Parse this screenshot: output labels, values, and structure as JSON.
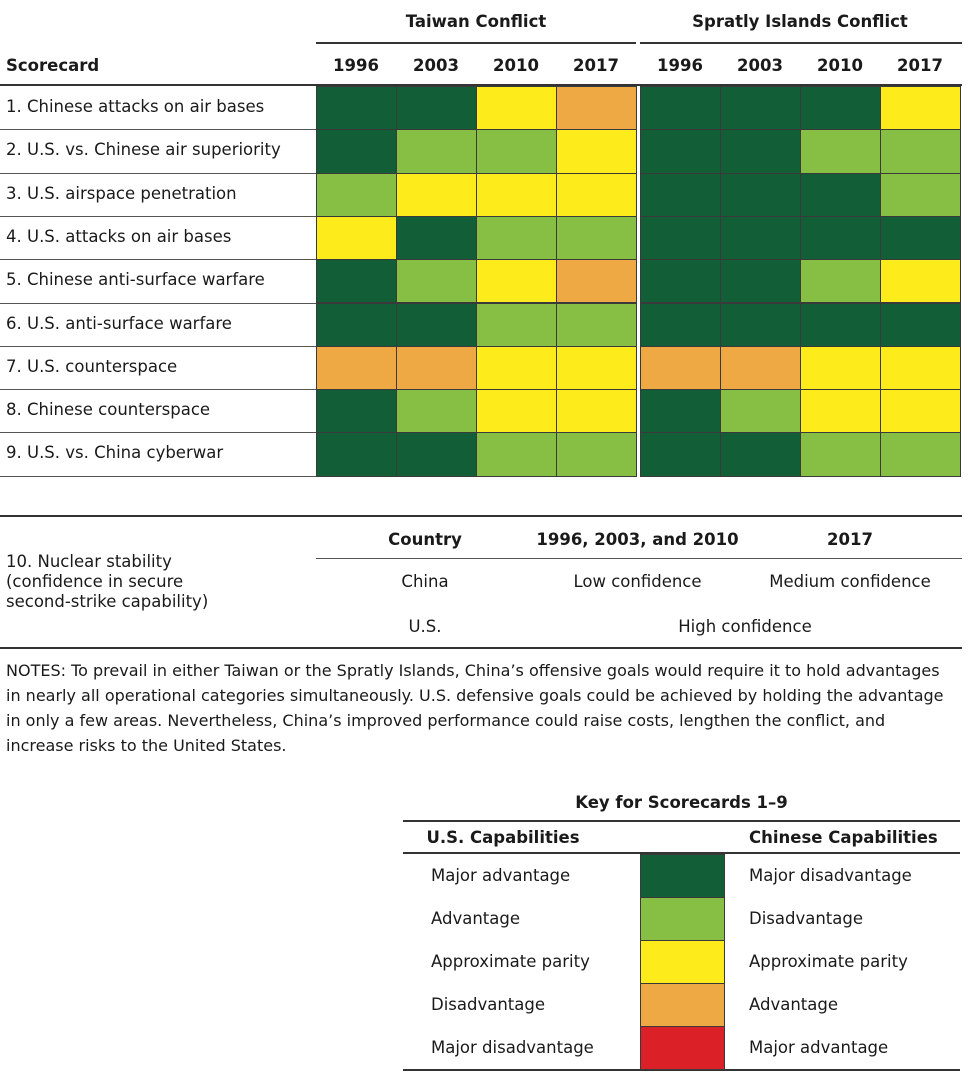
{
  "chart_data": {
    "type": "heatmap",
    "title": "Scorecard",
    "groups": [
      "Taiwan Conflict",
      "Spratly Islands Conflict"
    ],
    "years": [
      "1996",
      "2003",
      "2010",
      "2017"
    ],
    "row_header": "Scorecard",
    "scale_note": "2 = U.S. major advantage, 1 = U.S. advantage, 0 = approximate parity, -1 = U.S. disadvantage, -2 = U.S. major disadvantage",
    "rows": [
      {
        "label": "1. Chinese attacks on air bases",
        "taiwan": [
          2,
          2,
          0,
          -1
        ],
        "spratly": [
          2,
          2,
          2,
          0
        ]
      },
      {
        "label": "2. U.S. vs. Chinese air superiority",
        "taiwan": [
          2,
          1,
          1,
          0
        ],
        "spratly": [
          2,
          2,
          1,
          1
        ]
      },
      {
        "label": "3. U.S. airspace penetration",
        "taiwan": [
          1,
          0,
          0,
          0
        ],
        "spratly": [
          2,
          2,
          2,
          1
        ]
      },
      {
        "label": "4. U.S. attacks on air bases",
        "taiwan": [
          0,
          2,
          1,
          1
        ],
        "spratly": [
          2,
          2,
          2,
          2
        ]
      },
      {
        "label": "5. Chinese anti-surface warfare",
        "taiwan": [
          2,
          1,
          0,
          -1
        ],
        "spratly": [
          2,
          2,
          1,
          0
        ]
      },
      {
        "label": "6. U.S. anti-surface warfare",
        "taiwan": [
          2,
          2,
          1,
          1
        ],
        "spratly": [
          2,
          2,
          2,
          2
        ]
      },
      {
        "label": "7. U.S. counterspace",
        "taiwan": [
          -1,
          -1,
          0,
          0
        ],
        "spratly": [
          -1,
          -1,
          0,
          0
        ]
      },
      {
        "label": "8. Chinese counterspace",
        "taiwan": [
          2,
          1,
          0,
          0
        ],
        "spratly": [
          2,
          1,
          0,
          0
        ]
      },
      {
        "label": "9. U.S. vs. China cyberwar",
        "taiwan": [
          2,
          2,
          1,
          1
        ],
        "spratly": [
          2,
          2,
          1,
          1
        ]
      }
    ],
    "colors": {
      "2": "#115e37",
      "1": "#86bf43",
      "0": "#fdeb1b",
      "-1": "#efa944",
      "-2": "#dc2027"
    }
  },
  "nuclear": {
    "label": "10. Nuclear stability\n(confidence in secure\nsecond-strike capability)",
    "headers": [
      "Country",
      "1996, 2003, and 2010",
      "2017"
    ],
    "china": {
      "country": "China",
      "early": "Low confidence",
      "late": "Medium confidence"
    },
    "us": {
      "country": "U.S.",
      "all": "High confidence"
    }
  },
  "notes": "NOTES: To prevail in either Taiwan or the Spratly Islands, China’s offensive goals would require it to hold advantages in nearly all operational categories simultaneously. U.S. defensive goals could be achieved by holding the advantage in only a few areas. Nevertheless, China’s improved performance could raise costs, lengthen the conflict, and increase risks to the United States.",
  "key": {
    "title": "Key for Scorecards 1–9",
    "us_header": "U.S. Capabilities",
    "cn_header": "Chinese Capabilities",
    "items": [
      {
        "value": 2,
        "us": "Major advantage",
        "cn": "Major disadvantage"
      },
      {
        "value": 1,
        "us": "Advantage",
        "cn": "Disadvantage"
      },
      {
        "value": 0,
        "us": "Approximate parity",
        "cn": "Approximate parity"
      },
      {
        "value": -1,
        "us": "Disadvantage",
        "cn": "Advantage"
      },
      {
        "value": -2,
        "us": "Major disadvantage",
        "cn": "Major advantage"
      }
    ]
  }
}
